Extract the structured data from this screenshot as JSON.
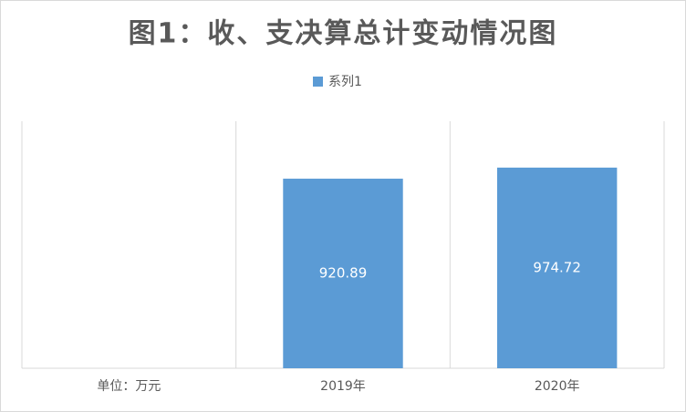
{
  "chart_data": {
    "type": "bar",
    "title": "图1：收、支决算总计变动情况图",
    "categories": [
      "单位：万元",
      "2019年",
      "2020年"
    ],
    "series": [
      {
        "name": "系列1",
        "color": "#5b9bd5",
        "values": [
          null,
          920.89,
          974.72
        ]
      }
    ],
    "ylim": [
      0,
      1200
    ],
    "category_grid": true
  }
}
